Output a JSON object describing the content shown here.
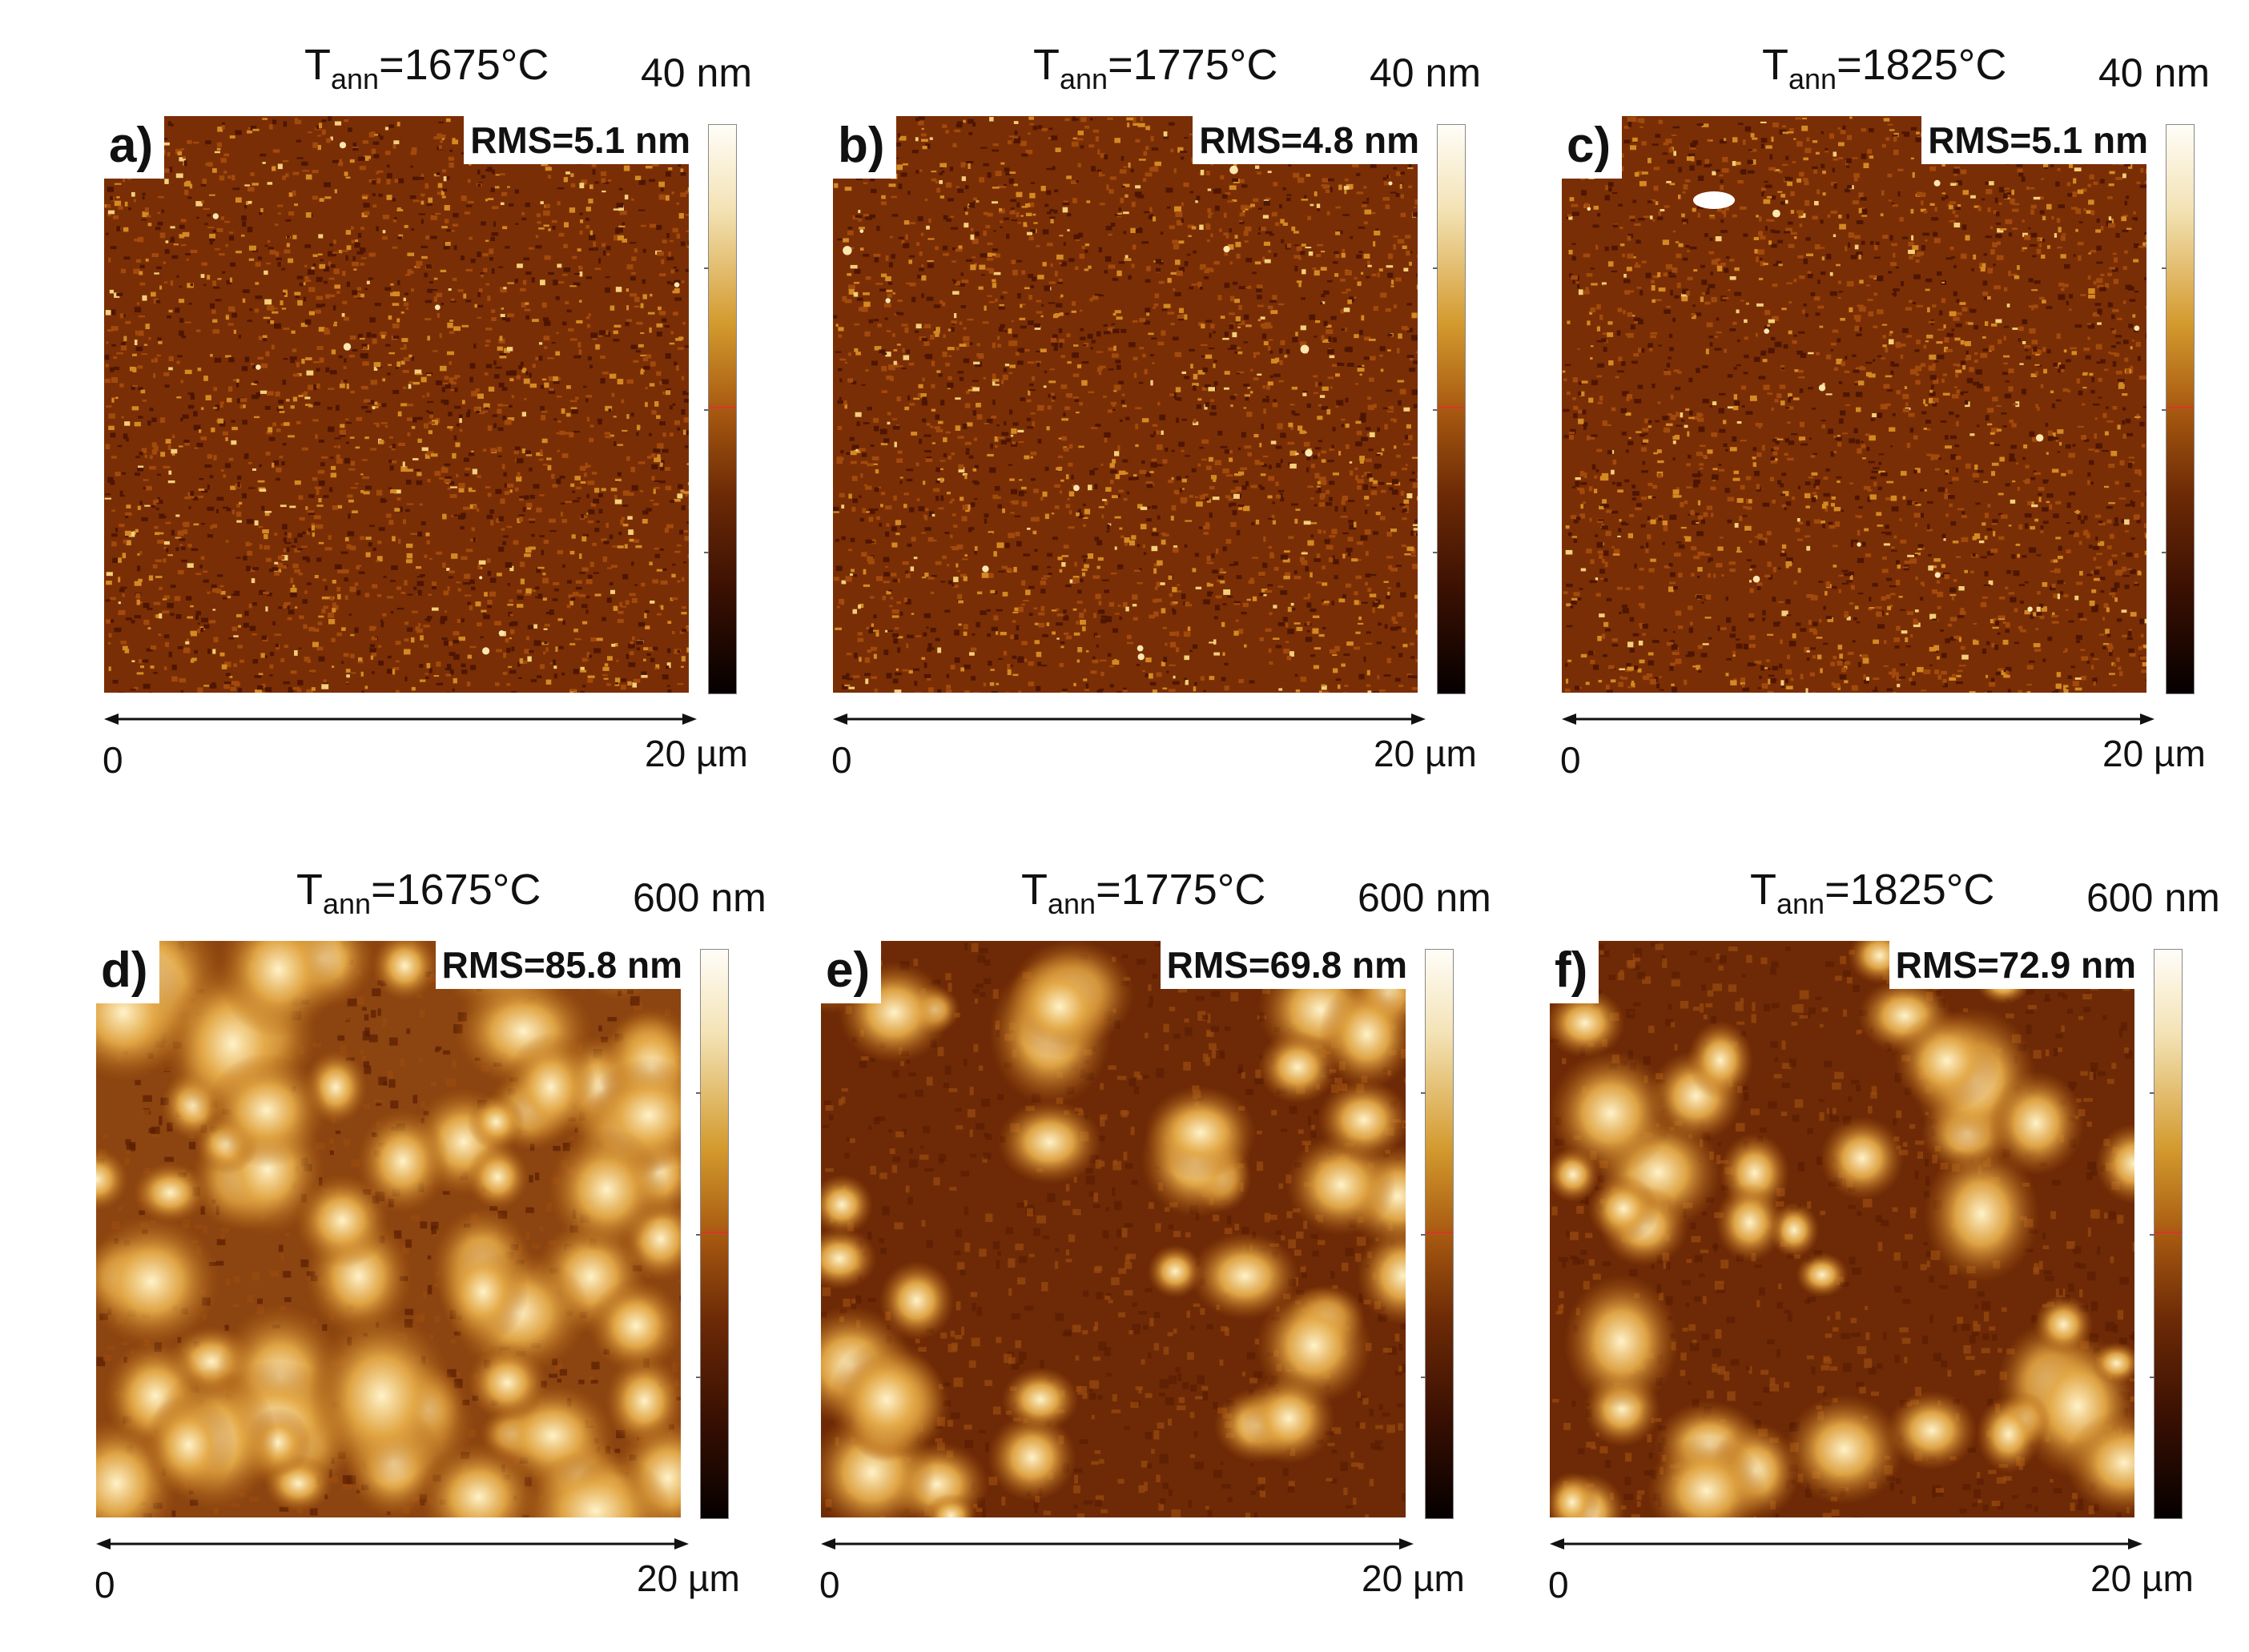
{
  "panels": [
    {
      "letter": "a)",
      "title_main": "T",
      "title_sub": "ann",
      "title_rest": "=1675°C",
      "scale_max": "40 nm",
      "rms": "RMS=5.1 nm",
      "axis_min": "0",
      "axis_max": "20 µm",
      "texture": "fine"
    },
    {
      "letter": "b)",
      "title_main": "T",
      "title_sub": "ann",
      "title_rest": "=1775°C",
      "scale_max": "40 nm",
      "rms": "RMS=4.8 nm",
      "axis_min": "0",
      "axis_max": "20 µm",
      "texture": "fine"
    },
    {
      "letter": "c)",
      "title_main": "T",
      "title_sub": "ann",
      "title_rest": "=1825°C",
      "scale_max": "40 nm",
      "rms": "RMS=5.1 nm",
      "axis_min": "0",
      "axis_max": "20 µm",
      "texture": "fine"
    },
    {
      "letter": "d)",
      "title_main": "T",
      "title_sub": "ann",
      "title_rest": "=1675°C",
      "scale_max": "600 nm",
      "rms": "RMS=85.8 nm",
      "axis_min": "0",
      "axis_max": "20 µm",
      "texture": "coarse-dense"
    },
    {
      "letter": "e)",
      "title_main": "T",
      "title_sub": "ann",
      "title_rest": "=1775°C",
      "scale_max": "600 nm",
      "rms": "RMS=69.8 nm",
      "axis_min": "0",
      "axis_max": "20 µm",
      "texture": "coarse-sparse"
    },
    {
      "letter": "f)",
      "title_main": "T",
      "title_sub": "ann",
      "title_rest": "=1825°C",
      "scale_max": "600 nm",
      "rms": "RMS=72.9 nm",
      "axis_min": "0",
      "axis_max": "20 µm",
      "texture": "coarse-sparse"
    }
  ],
  "colors": {
    "afm_dark": "#5a1a02",
    "afm_mid": "#a85a10",
    "afm_light": "#f6d78a"
  }
}
